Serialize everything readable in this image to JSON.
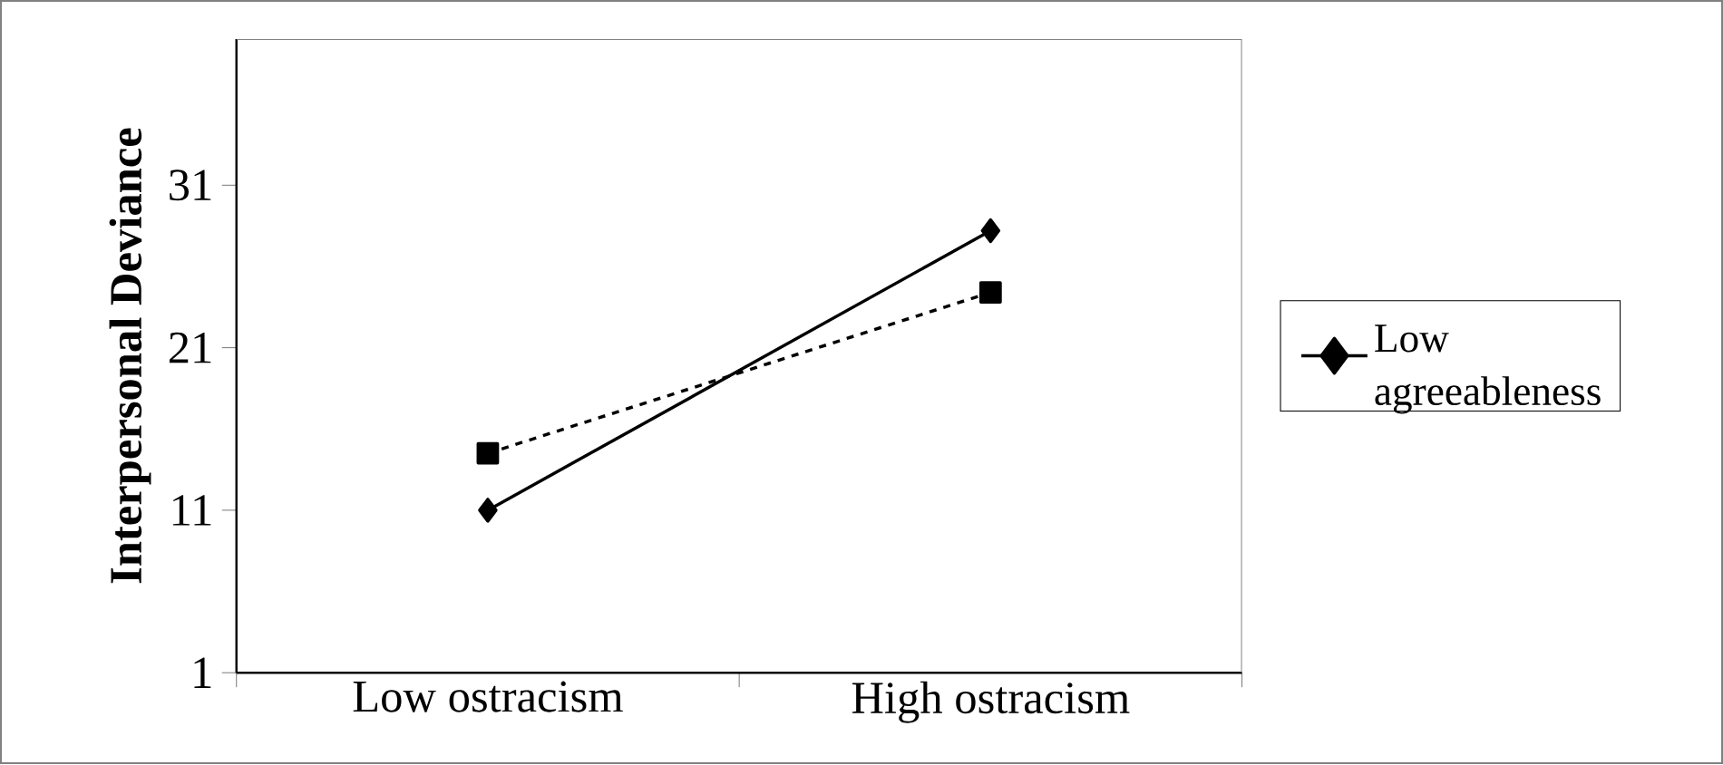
{
  "chart_data": {
    "type": "line",
    "ylabel": "Interpersonal Deviance",
    "categories": [
      "Low ostracism",
      "High ostracism"
    ],
    "series": [
      {
        "name": "Low agreeableness",
        "color": "#000000",
        "values": [
          11.0,
          28.2
        ],
        "marker": "diamond",
        "line_style": "solid"
      },
      {
        "color": "#000000",
        "values": [
          14.5,
          24.4
        ],
        "marker": "square",
        "line_style": "dashed"
      }
    ],
    "ylim": [
      1,
      40
    ],
    "yticks": [
      1,
      11,
      21,
      31
    ],
    "grid": false,
    "legend": "right"
  }
}
